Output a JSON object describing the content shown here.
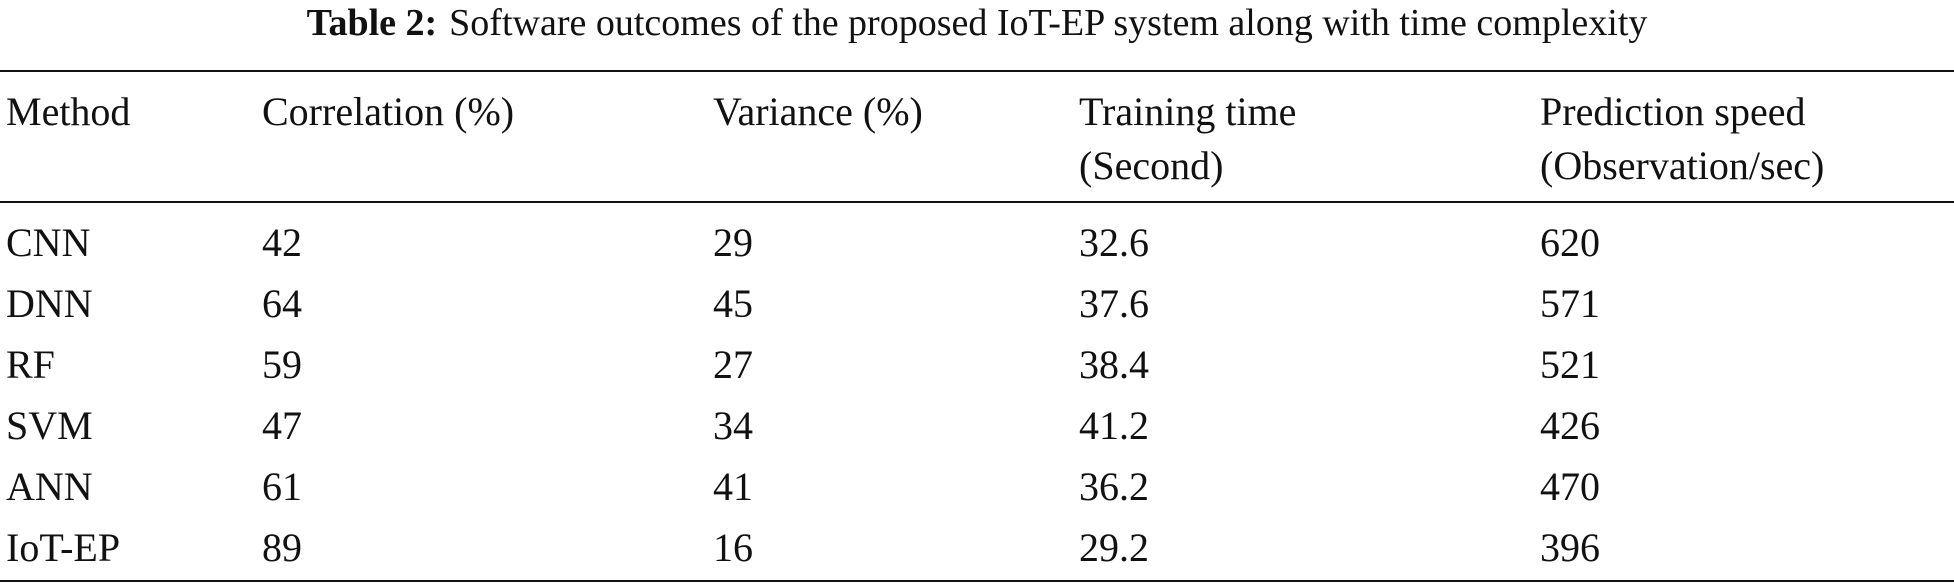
{
  "table": {
    "caption": {
      "label": "Table 2:",
      "text": "Software outcomes of the proposed IoT-EP system along with time complexity"
    },
    "header": [
      "Method",
      "Correlation (%)",
      "Variance (%)",
      "Training time (Second)",
      "Prediction speed (Observation/sec)"
    ],
    "rows": [
      [
        "CNN",
        42,
        29,
        32.6,
        620
      ],
      [
        "DNN",
        64,
        45,
        37.6,
        571
      ],
      [
        "RF",
        59,
        27,
        38.4,
        521
      ],
      [
        "SVM",
        47,
        34,
        41.2,
        426
      ],
      [
        "ANN",
        61,
        41,
        36.2,
        470
      ],
      [
        "IoT-EP",
        89,
        16,
        29.2,
        396
      ]
    ]
  }
}
